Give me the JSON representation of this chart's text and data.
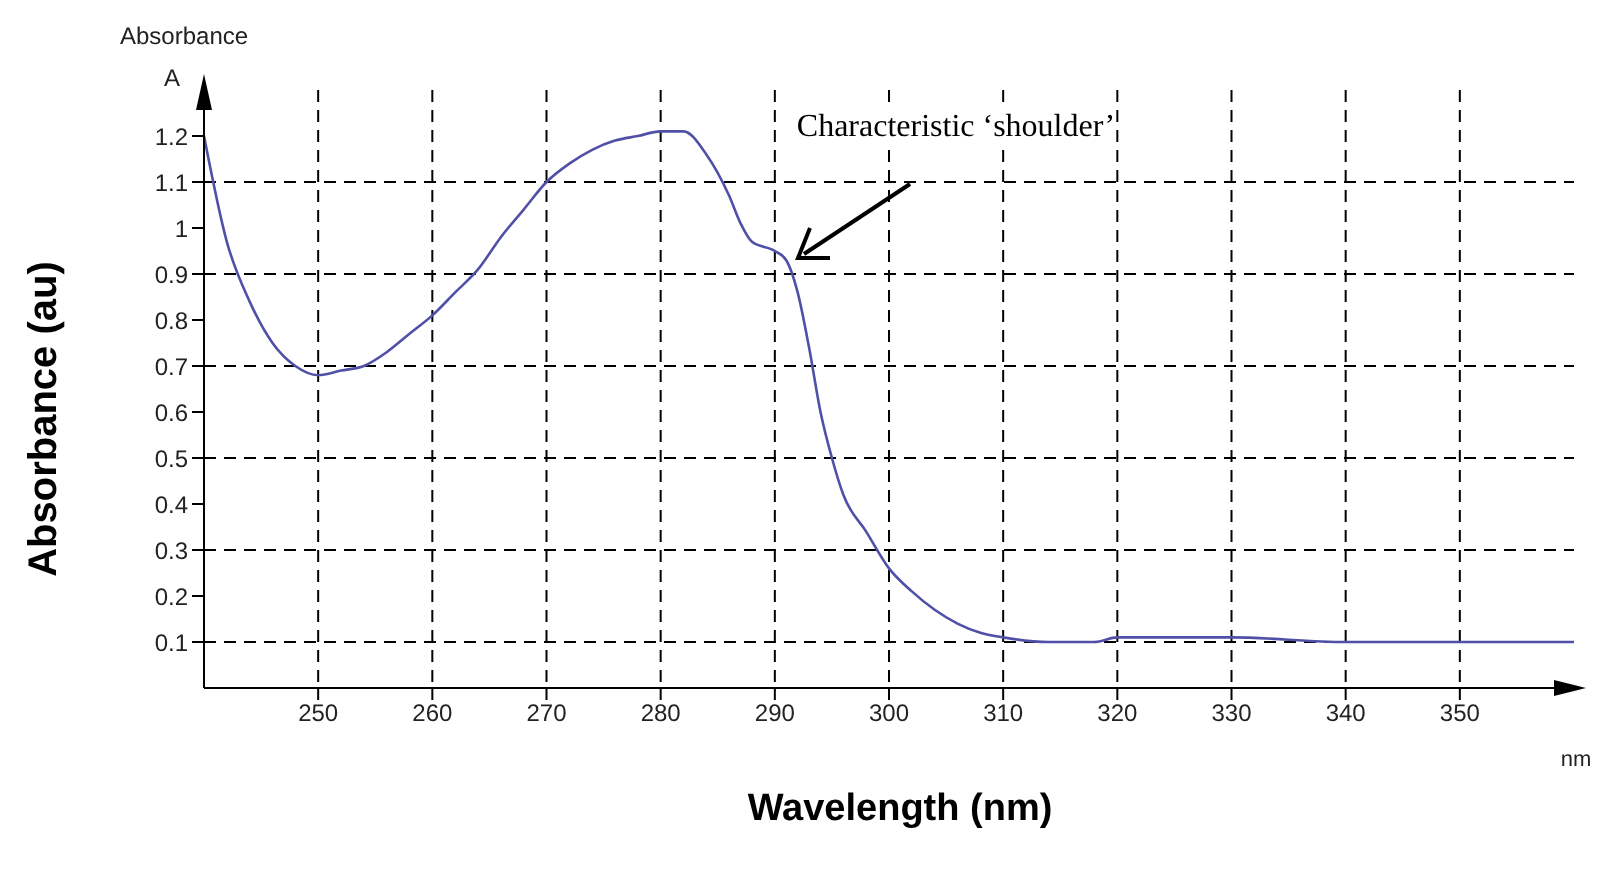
{
  "chart_data": {
    "type": "line",
    "title": "Absorbance",
    "subtitle": "A",
    "xlabel": "Wavelength (nm)",
    "ylabel": "Absorbance (au)",
    "annotations": [
      "nm",
      "Characteristic ‘shoulder’"
    ],
    "x": [
      240,
      242,
      244,
      246,
      248,
      250,
      252,
      254,
      256,
      258,
      260,
      262,
      264,
      266,
      268,
      270,
      272,
      274,
      276,
      278,
      280,
      282,
      284,
      286,
      287,
      288,
      290,
      291,
      292,
      293,
      294,
      295,
      296,
      298,
      300,
      302,
      304,
      306,
      308,
      310,
      314,
      318,
      320,
      325,
      330,
      340,
      350,
      360
    ],
    "series": [
      {
        "color": "#5050a8",
        "values": [
          1.2,
          0.97,
          0.84,
          0.75,
          0.7,
          0.68,
          0.69,
          0.7,
          0.73,
          0.77,
          0.81,
          0.86,
          0.91,
          0.98,
          1.04,
          1.1,
          1.14,
          1.17,
          1.19,
          1.2,
          1.21,
          1.21,
          1.16,
          1.07,
          1.01,
          0.97,
          0.95,
          0.93,
          0.86,
          0.74,
          0.6,
          0.5,
          0.42,
          0.34,
          0.26,
          0.21,
          0.17,
          0.14,
          0.12,
          0.11,
          0.1,
          0.1,
          0.11,
          0.11,
          0.11,
          0.1,
          0.1,
          0.1
        ]
      }
    ],
    "xlim": [
      240,
      360
    ],
    "xticks": [
      250,
      260,
      270,
      280,
      290,
      300,
      310,
      320,
      330,
      340,
      350
    ],
    "ylim": [
      0,
      1.3
    ],
    "yticks": [
      0.1,
      0.2,
      0.3,
      0.4,
      0.5,
      0.6,
      0.7,
      0.8,
      0.9,
      1,
      1.1,
      1.2
    ],
    "grid": true,
    "marker": "none",
    "line_style": "solid"
  }
}
